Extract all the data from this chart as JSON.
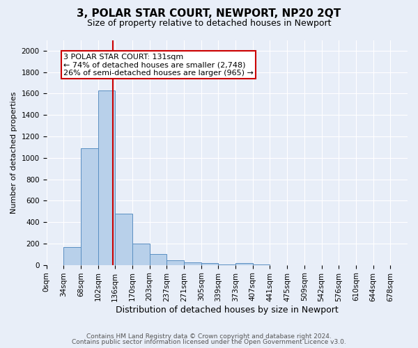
{
  "title": "3, POLAR STAR COURT, NEWPORT, NP20 2QT",
  "subtitle": "Size of property relative to detached houses in Newport",
  "xlabel": "Distribution of detached houses by size in Newport",
  "ylabel": "Number of detached properties",
  "bar_labels": [
    "0sqm",
    "34sqm",
    "68sqm",
    "102sqm",
    "136sqm",
    "170sqm",
    "203sqm",
    "237sqm",
    "271sqm",
    "305sqm",
    "339sqm",
    "373sqm",
    "407sqm",
    "441sqm",
    "475sqm",
    "509sqm",
    "542sqm",
    "576sqm",
    "610sqm",
    "644sqm",
    "678sqm"
  ],
  "bar_values": [
    0,
    170,
    1090,
    1630,
    480,
    200,
    100,
    42,
    25,
    15,
    5,
    20,
    5,
    0,
    0,
    0,
    0,
    0,
    0,
    0,
    0
  ],
  "bar_color": "#b8d0ea",
  "bar_edge_color": "#5a8fc2",
  "bg_color": "#e8eef8",
  "grid_color": "#ffffff",
  "vline_x": 131,
  "vline_color": "#cc0000",
  "annotation_line1": "3 POLAR STAR COURT: 131sqm",
  "annotation_line2": "← 74% of detached houses are smaller (2,748)",
  "annotation_line3": "26% of semi-detached houses are larger (965) →",
  "annotation_box_color": "#ffffff",
  "annotation_box_edge": "#cc0000",
  "ylim": [
    0,
    2100
  ],
  "yticks": [
    0,
    200,
    400,
    600,
    800,
    1000,
    1200,
    1400,
    1600,
    1800,
    2000
  ],
  "footnote1": "Contains HM Land Registry data © Crown copyright and database right 2024.",
  "footnote2": "Contains public sector information licensed under the Open Government Licence v3.0.",
  "bin_width": 34,
  "n_bins": 21,
  "title_fontsize": 11,
  "subtitle_fontsize": 9,
  "xlabel_fontsize": 9,
  "ylabel_fontsize": 8,
  "tick_fontsize": 7.5,
  "annot_fontsize": 8
}
